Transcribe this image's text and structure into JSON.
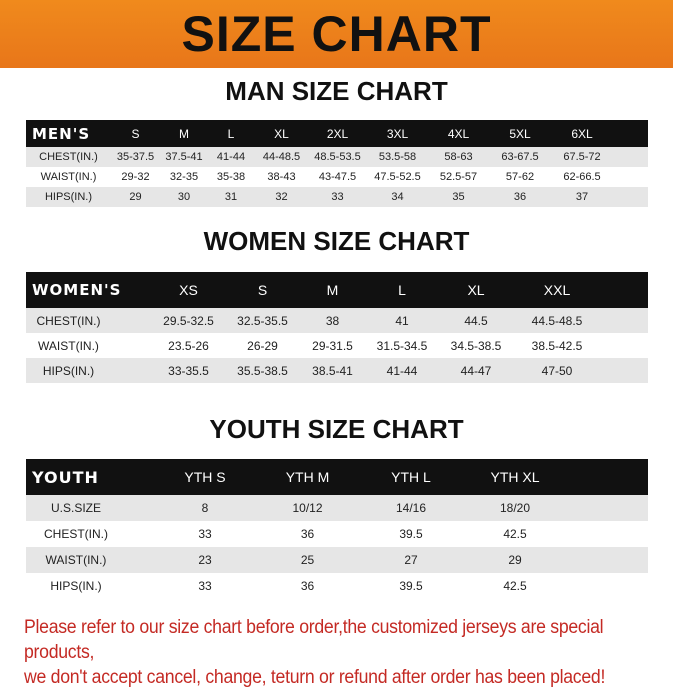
{
  "title": "SIZE CHART",
  "men": {
    "title": "MAN SIZE CHART",
    "header": [
      "MEN'S",
      "S",
      "M",
      "L",
      "XL",
      "2XL",
      "3XL",
      "4XL",
      "5XL",
      "6XL"
    ],
    "rows": [
      [
        "CHEST(IN.)",
        "35-37.5",
        "37.5-41",
        "41-44",
        "44-48.5",
        "48.5-53.5",
        "53.5-58",
        "58-63",
        "63-67.5",
        "67.5-72"
      ],
      [
        "WAIST(IN.)",
        "29-32",
        "32-35",
        "35-38",
        "38-43",
        "43-47.5",
        "47.5-52.5",
        "52.5-57",
        "57-62",
        "62-66.5"
      ],
      [
        "HIPS(IN.)",
        "29",
        "30",
        "31",
        "32",
        "33",
        "34",
        "35",
        "36",
        "37"
      ]
    ]
  },
  "women": {
    "title": "WOMEN SIZE CHART",
    "header": [
      "WOMEN'S",
      "XS",
      "S",
      "M",
      "L",
      "XL",
      "XXL"
    ],
    "rows": [
      [
        "CHEST(IN.)",
        "29.5-32.5",
        "32.5-35.5",
        "38",
        "41",
        "44.5",
        "44.5-48.5"
      ],
      [
        "WAIST(IN.)",
        "23.5-26",
        "26-29",
        "29-31.5",
        "31.5-34.5",
        "34.5-38.5",
        "38.5-42.5"
      ],
      [
        "HIPS(IN.)",
        "33-35.5",
        "35.5-38.5",
        "38.5-41",
        "41-44",
        "44-47",
        "47-50"
      ]
    ]
  },
  "youth": {
    "title": "YOUTH SIZE CHART",
    "header": [
      "YOUTH",
      "YTH S",
      "YTH M",
      "YTH L",
      "YTH XL"
    ],
    "rows": [
      [
        "U.S.SIZE",
        "8",
        "10/12",
        "14/16",
        "18/20"
      ],
      [
        "CHEST(IN.)",
        "33",
        "36",
        "39.5",
        "42.5"
      ],
      [
        "WAIST(IN.)",
        "23",
        "25",
        "27",
        "29"
      ],
      [
        "HIPS(IN.)",
        "33",
        "36",
        "39.5",
        "42.5"
      ]
    ]
  },
  "footer": {
    "line1": "Please refer to our size chart before order,the customized jerseys are special products,",
    "line2": "we don't accept cancel, change, teturn or refund after order has been placed!"
  }
}
